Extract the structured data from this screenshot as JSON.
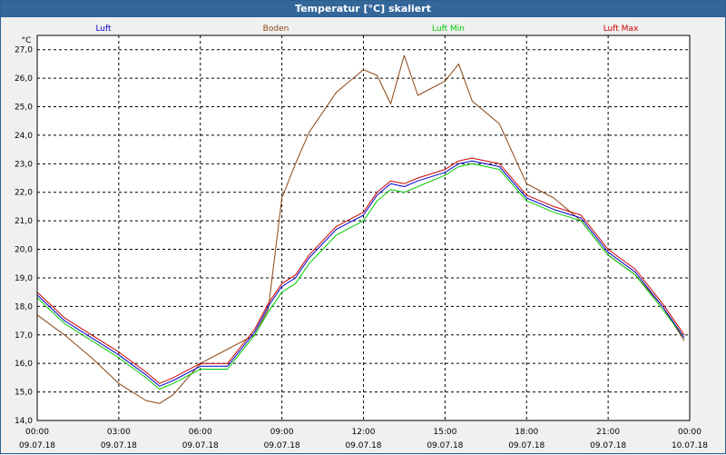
{
  "window": {
    "title": "Temperatur [°C] skaliert"
  },
  "chart_data": {
    "type": "line",
    "title": "Temperatur [°C] skaliert",
    "ylabel": "°C",
    "xlabel": "",
    "ylim": [
      14.0,
      27.5
    ],
    "xlim": [
      0,
      24
    ],
    "grid": true,
    "y_ticks": [
      {
        "value": 14.0,
        "label": "14,0"
      },
      {
        "value": 15.0,
        "label": "15,0"
      },
      {
        "value": 16.0,
        "label": "16,0"
      },
      {
        "value": 17.0,
        "label": "17,0"
      },
      {
        "value": 18.0,
        "label": "18,0"
      },
      {
        "value": 19.0,
        "label": "19,0"
      },
      {
        "value": 20.0,
        "label": "20,0"
      },
      {
        "value": 21.0,
        "label": "21,0"
      },
      {
        "value": 22.0,
        "label": "22,0"
      },
      {
        "value": 23.0,
        "label": "23,0"
      },
      {
        "value": 24.0,
        "label": "24,0"
      },
      {
        "value": 25.0,
        "label": "25,0"
      },
      {
        "value": 26.0,
        "label": "26,0"
      },
      {
        "value": 27.0,
        "label": "27,0"
      }
    ],
    "x_ticks": [
      {
        "value": 0,
        "time": "00:00",
        "date": "09.07.18"
      },
      {
        "value": 3,
        "time": "03:00",
        "date": "09.07.18"
      },
      {
        "value": 6,
        "time": "06:00",
        "date": "09.07.18"
      },
      {
        "value": 9,
        "time": "09:00",
        "date": "09.07.18"
      },
      {
        "value": 12,
        "time": "12:00",
        "date": "09.07.18"
      },
      {
        "value": 15,
        "time": "15:00",
        "date": "09.07.18"
      },
      {
        "value": 18,
        "time": "18:00",
        "date": "09.07.18"
      },
      {
        "value": 21,
        "time": "21:00",
        "date": "09.07.18"
      },
      {
        "value": 24,
        "time": "00:00",
        "date": "10.07.18"
      }
    ],
    "legend_position": "top",
    "x": [
      0,
      1,
      2,
      3,
      4,
      4.5,
      5,
      6,
      7,
      8,
      8.5,
      9,
      9.5,
      10,
      11,
      12,
      12.5,
      13,
      13.5,
      14,
      15,
      15.5,
      16,
      17,
      18,
      19,
      20,
      21,
      22,
      23,
      23.8
    ],
    "series": [
      {
        "name": "Luft",
        "color": "#0000cc",
        "values": [
          18.4,
          17.5,
          16.9,
          16.3,
          15.6,
          15.2,
          15.4,
          15.9,
          15.9,
          17.1,
          18.0,
          18.7,
          19.0,
          19.7,
          20.7,
          21.2,
          21.9,
          22.3,
          22.2,
          22.4,
          22.7,
          23.0,
          23.1,
          22.9,
          21.8,
          21.4,
          21.1,
          19.9,
          19.2,
          18.0,
          16.9
        ]
      },
      {
        "name": "Boden",
        "color": "#8b4513",
        "values": [
          17.7,
          17.0,
          16.2,
          15.3,
          14.7,
          14.6,
          14.9,
          16.0,
          16.5,
          17.0,
          17.9,
          21.8,
          23.0,
          24.1,
          25.5,
          26.3,
          26.1,
          25.1,
          26.8,
          25.4,
          25.9,
          26.5,
          25.2,
          24.4,
          22.3,
          21.8,
          21.0,
          19.8,
          19.1,
          18.0,
          16.8
        ]
      },
      {
        "name": "Luft Min",
        "color": "#00cc00",
        "values": [
          18.3,
          17.4,
          16.8,
          16.2,
          15.5,
          15.1,
          15.3,
          15.8,
          15.8,
          17.0,
          17.8,
          18.5,
          18.8,
          19.5,
          20.5,
          21.0,
          21.7,
          22.1,
          22.0,
          22.2,
          22.6,
          22.9,
          23.0,
          22.8,
          21.7,
          21.3,
          21.0,
          19.8,
          19.1,
          17.9,
          16.9
        ]
      },
      {
        "name": "Luft Max",
        "color": "#cc0000",
        "values": [
          18.5,
          17.6,
          17.0,
          16.4,
          15.7,
          15.3,
          15.5,
          16.0,
          16.0,
          17.2,
          18.1,
          18.8,
          19.1,
          19.8,
          20.8,
          21.3,
          22.0,
          22.4,
          22.3,
          22.5,
          22.8,
          23.1,
          23.2,
          23.0,
          21.9,
          21.5,
          21.2,
          20.0,
          19.3,
          18.1,
          17.0
        ]
      }
    ]
  }
}
